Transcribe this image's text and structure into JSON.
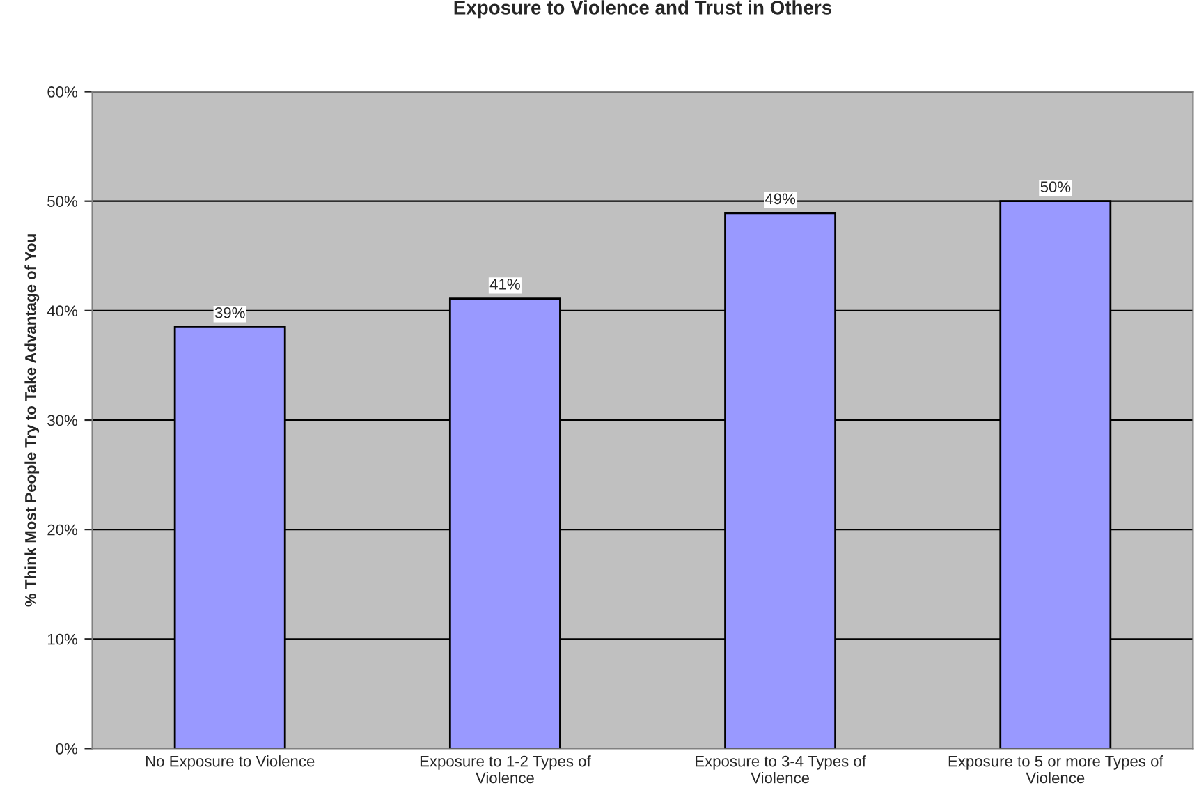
{
  "chart_data": {
    "type": "bar",
    "title": "Exposure to Violence and Trust in Others",
    "ylabel": "% Think Most People Try to Take Advantage of You",
    "categories": [
      "No Exposure to Violence",
      "Exposure to 1-2 Types of\nViolence",
      "Exposure to 3-4 Types of\nViolence",
      "Exposure to 5 or more Types of\nViolence"
    ],
    "values": [
      38.5,
      41.1,
      48.9,
      50
    ],
    "value_labels": [
      "39%",
      "41%",
      "49%",
      "50%"
    ],
    "color": "#9999ff",
    "ylim": [
      0,
      60
    ],
    "yticks": [
      {
        "value": 0,
        "label": "0%"
      },
      {
        "value": 10,
        "label": "10%"
      },
      {
        "value": 20,
        "label": "20%"
      },
      {
        "value": 30,
        "label": "30%"
      },
      {
        "value": 40,
        "label": "40%"
      },
      {
        "value": 50,
        "label": "50%"
      },
      {
        "value": 60,
        "label": "60%"
      }
    ],
    "grid": "y"
  }
}
